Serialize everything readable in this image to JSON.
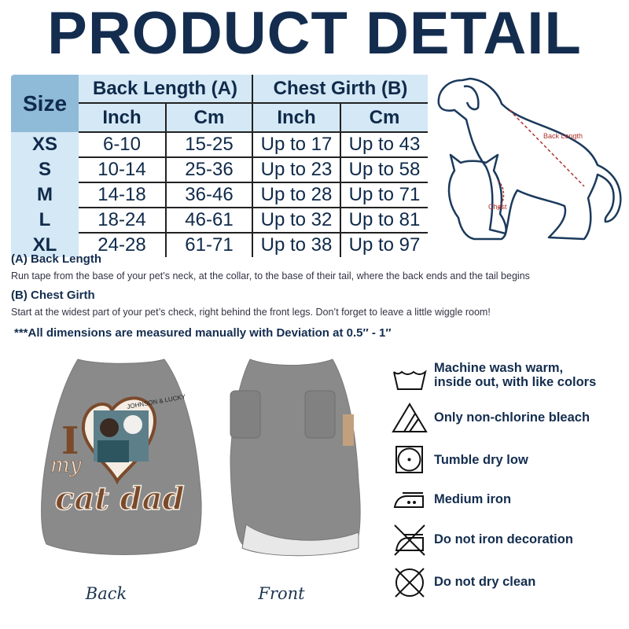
{
  "title": "PRODUCT DETAIL",
  "size_table": {
    "size_header": "Size",
    "group_headers": [
      "Back Length (A)",
      "Chest Girth (B)"
    ],
    "unit_headers": [
      "Inch",
      "Cm",
      "Inch",
      "Cm"
    ],
    "rows": [
      [
        "XS",
        "6-10",
        "15-25",
        "Up to 17",
        "Up to 43"
      ],
      [
        "S",
        "10-14",
        "25-36",
        "Up to 23",
        "Up to 58"
      ],
      [
        "M",
        "14-18",
        "36-46",
        "Up to 28",
        "Up to 71"
      ],
      [
        "L",
        "18-24",
        "46-61",
        "Up to 32",
        "Up to 81"
      ],
      [
        "XL",
        "24-28",
        "61-71",
        "Up to 38",
        "Up to 97"
      ]
    ]
  },
  "diagram": {
    "back_length_label": "Back Length",
    "chest_label": "Chest"
  },
  "notes": {
    "a_title": "(A) Back Length",
    "a_text": "Run tape from the base of your pet’s neck, at the collar, to the base of their tail, where the back ends and the tail begins",
    "b_title": "(B) Chest Girth",
    "b_text": "Start at the widest part of your pet’s check, right behind the front legs. Don’t forget to leave a little wiggle room!",
    "deviation": "***All dimensions are measured manually with Deviation at 0.5″ - 1″"
  },
  "shirt": {
    "names": "JOHNSON & LUCKY",
    "print_text": [
      "I",
      "my",
      "cat dad"
    ],
    "back_label": "Back",
    "front_label": "Front",
    "color": "#8a8a8a"
  },
  "care": [
    {
      "icon": "wash-warm-icon",
      "text": "Machine wash warm,\ninside out, with like colors"
    },
    {
      "icon": "non-chlorine-bleach-icon",
      "text": "Only non-chlorine bleach"
    },
    {
      "icon": "tumble-dry-low-icon",
      "text": "Tumble dry low"
    },
    {
      "icon": "medium-iron-icon",
      "text": "Medium iron"
    },
    {
      "icon": "do-not-iron-icon",
      "text": "Do not iron decoration"
    },
    {
      "icon": "do-not-dry-clean-icon",
      "text": "Do not dry clean"
    }
  ],
  "colors": {
    "title": "#142d4f",
    "table_header": "#d4e8f5",
    "size_header": "#8fbad8",
    "diagram_accent": "#b0302c"
  }
}
